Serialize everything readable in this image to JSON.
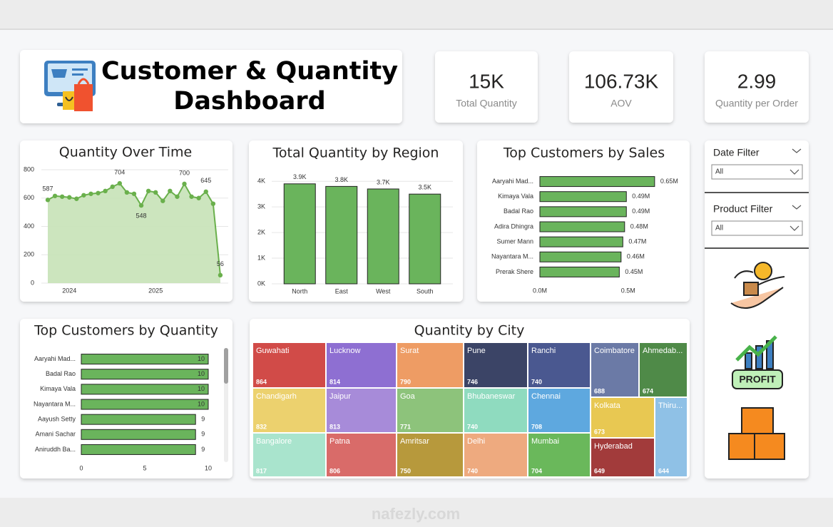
{
  "header": {
    "title": [
      "Customer & Quantity",
      "Dashboard"
    ]
  },
  "kpis": [
    {
      "value": "15K",
      "label": "Total Quantity"
    },
    {
      "value": "106.73K",
      "label": "AOV"
    },
    {
      "value": "2.99",
      "label": "Quantity per Order"
    }
  ],
  "filters": [
    {
      "label": "Date Filter",
      "selected": "All"
    },
    {
      "label": "Product Filter",
      "selected": "All"
    }
  ],
  "watermark": "nafezly.com",
  "chart_data": [
    {
      "type": "area",
      "title": "Quantity Over Time",
      "color": "#6ab04c",
      "fill": "#c6e2b7",
      "categories": [
        null,
        null,
        null,
        "2024",
        null,
        null,
        null,
        null,
        null,
        null,
        null,
        null,
        null,
        null,
        null,
        "2025",
        null,
        null,
        null,
        null,
        null,
        null,
        null,
        null,
        null
      ],
      "values": [
        587,
        615,
        610,
        605,
        595,
        620,
        630,
        635,
        650,
        680,
        704,
        640,
        630,
        548,
        650,
        640,
        580,
        650,
        610,
        700,
        610,
        600,
        645,
        560,
        56
      ],
      "value_labels": [
        "587",
        null,
        null,
        null,
        null,
        null,
        null,
        null,
        null,
        null,
        "704",
        null,
        null,
        "548",
        null,
        null,
        null,
        null,
        null,
        "700",
        null,
        null,
        "645",
        null,
        "56"
      ],
      "ylim": [
        0,
        800
      ],
      "yticks": [
        0,
        200,
        400,
        600,
        800
      ],
      "grid": true
    },
    {
      "type": "bar",
      "title": "Total Quantity by Region",
      "color": "#6ab45c",
      "categories": [
        "North",
        "East",
        "West",
        "South"
      ],
      "values": [
        3900,
        3800,
        3700,
        3500
      ],
      "value_labels": [
        "3.9K",
        "3.8K",
        "3.7K",
        "3.5K"
      ],
      "ylim": [
        0,
        4200
      ],
      "yticks": [
        {
          "value": 0,
          "label": "0K"
        },
        {
          "value": 1000,
          "label": "1K"
        },
        {
          "value": 2000,
          "label": "2K"
        },
        {
          "value": 3000,
          "label": "3K"
        },
        {
          "value": 4000,
          "label": "4K"
        }
      ],
      "grid": true
    },
    {
      "type": "hbar",
      "title": "Top Customers by Sales",
      "color": "#6ab45c",
      "categories": [
        "Aaryahi Mad...",
        "Kimaya Vala",
        "Badal Rao",
        "Adira Dhingra",
        "Sumer Mann",
        "Nayantara M...",
        "Prerak Shere"
      ],
      "values": [
        650000,
        490000,
        490000,
        480000,
        470000,
        460000,
        450000
      ],
      "value_labels": [
        "0.65M",
        "0.49M",
        "0.49M",
        "0.48M",
        "0.47M",
        "0.46M",
        "0.45M"
      ],
      "xlim": [
        0,
        800000
      ],
      "xticks": [
        {
          "value": 0,
          "label": "0.0M"
        },
        {
          "value": 500000,
          "label": "0.5M"
        }
      ]
    },
    {
      "type": "hbar",
      "title": "Top Customers by Quantity",
      "color": "#6ab45c",
      "categories": [
        "Aaryahi Mad...",
        "Badal Rao",
        "Kimaya Vala",
        "Nayantara M...",
        "Aayush Setty",
        "Amani Sachar",
        "Aniruddh Ba..."
      ],
      "values": [
        10,
        10,
        10,
        10,
        9,
        9,
        9
      ],
      "xlim": [
        0,
        10
      ],
      "xticks": [
        0,
        5,
        10
      ]
    },
    {
      "type": "treemap",
      "title": "Quantity by City",
      "categories": [
        "Guwahati",
        "Chandigarh",
        "Bangalore",
        "Lucknow",
        "Jaipur",
        "Patna",
        "Surat",
        "Goa",
        "Amritsar",
        "Pune",
        "Bhubaneswar",
        "Delhi",
        "Ranchi",
        "Chennai",
        "Mumbai",
        "Coimbatore",
        "Ahmedab...",
        "Kolkata",
        "Hyderabad",
        "Thiru..."
      ],
      "values": [
        864,
        832,
        817,
        814,
        813,
        806,
        790,
        771,
        750,
        746,
        740,
        740,
        740,
        708,
        704,
        688,
        674,
        673,
        649,
        644
      ],
      "colors": [
        "#d14b48",
        "#ecd16e",
        "#a9e4cd",
        "#8e6fd2",
        "#a78bd9",
        "#d96b69",
        "#ee9c64",
        "#8dc37b",
        "#b7993c",
        "#3b4466",
        "#8fdbbf",
        "#eeaa7f",
        "#4a5890",
        "#5ea8df",
        "#6ab85b",
        "#6b7aa6",
        "#4f8a48",
        "#e8c852",
        "#a23b3b",
        "#8fc1e6"
      ]
    }
  ]
}
